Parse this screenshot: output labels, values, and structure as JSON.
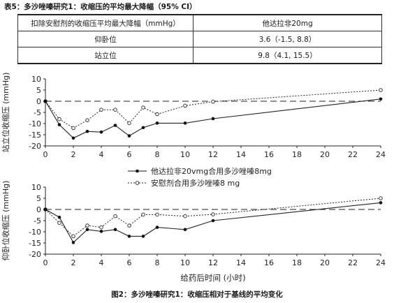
{
  "table": {
    "title": "表5：多沙唑嗪研究1：收缩压的平均最大降幅（95% CI）",
    "header": [
      "扣除安慰剂的收缩压平均最大降幅（mmHg）",
      "他达拉非20mg"
    ],
    "rows": [
      [
        "仰卧位",
        "3.6（-1.5, 8.8）"
      ],
      [
        "站立位",
        "9.8（4.1, 15.5）"
      ]
    ]
  },
  "figure_caption": "图2：多沙唑嗪研究1：收缩压相对于基线的平均变化",
  "legend": {
    "series1": "他达拉非20vmg合用多沙唑嗪8mg",
    "series2": "安慰剂合用多沙唑嗪8 mg"
  },
  "chart_data": [
    {
      "type": "line",
      "ylabel": "站立位收缩压 (mmHg)",
      "xlabel": "",
      "x_ticks": [
        0,
        2,
        4,
        6,
        8,
        10,
        12,
        14,
        16,
        18,
        20,
        22,
        24
      ],
      "y_ticks": [
        10,
        5,
        0,
        -5,
        -10,
        -15,
        -20
      ],
      "xlim": [
        0,
        24
      ],
      "ylim": [
        -20,
        10
      ],
      "reference_line": 0,
      "series": [
        {
          "name": "他达拉非20vmg合用多沙唑嗪8mg",
          "style": "solid",
          "marker": "filled",
          "x": [
            0,
            1,
            2,
            3,
            4,
            5,
            6,
            7,
            8,
            10,
            12,
            24
          ],
          "y": [
            0,
            -10.5,
            -16.5,
            -13.5,
            -13.8,
            -10.8,
            -15.5,
            -11.8,
            -9.8,
            -9.8,
            -7.8,
            1
          ]
        },
        {
          "name": "安慰剂合用多沙唑嗪8 mg",
          "style": "dotted",
          "marker": "open",
          "x": [
            0,
            1,
            2,
            3,
            4,
            5,
            6,
            7,
            8,
            10,
            12,
            24
          ],
          "y": [
            0,
            -8,
            -12,
            -8.5,
            -3.8,
            -3.8,
            -9.8,
            -2.8,
            -5.8,
            -2,
            -0.2,
            5
          ]
        }
      ]
    },
    {
      "type": "line",
      "ylabel": "仰卧位收缩压 (mmHg)",
      "xlabel": "给药后时间 (小时)",
      "x_ticks": [
        0,
        2,
        4,
        6,
        8,
        10,
        12,
        14,
        16,
        18,
        20,
        22,
        24
      ],
      "y_ticks": [
        10,
        5,
        0,
        -5,
        -10,
        -15,
        -20
      ],
      "xlim": [
        0,
        24
      ],
      "ylim": [
        -20,
        10
      ],
      "reference_line": 0,
      "series": [
        {
          "name": "他达拉非20vmg合用多沙唑嗪8mg",
          "style": "solid",
          "marker": "filled",
          "x": [
            0,
            1,
            2,
            3,
            4,
            5,
            6,
            7,
            8,
            10,
            12,
            24
          ],
          "y": [
            0,
            -3.5,
            -14.8,
            -9,
            -9.8,
            -9,
            -12,
            -12,
            -8,
            -9,
            -5,
            3
          ]
        },
        {
          "name": "安慰剂合用多沙唑嗪8 mg",
          "style": "dotted",
          "marker": "open",
          "x": [
            0,
            1,
            2,
            3,
            4,
            5,
            6,
            7,
            8,
            10,
            12,
            24
          ],
          "y": [
            0,
            -6,
            -12,
            -7.2,
            -8,
            -3,
            -7.2,
            -2.3,
            -2.3,
            -3,
            -2.2,
            5
          ]
        }
      ]
    }
  ]
}
